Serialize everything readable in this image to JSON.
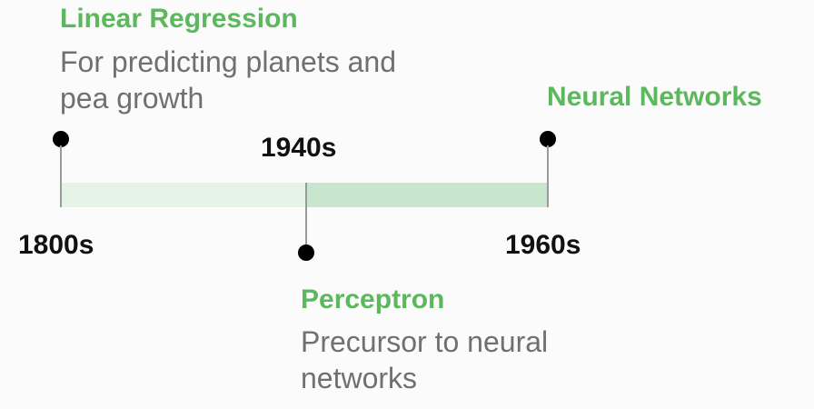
{
  "events": [
    {
      "id": "linear-regression",
      "title": "Linear Regression",
      "description": "For predicting planets and pea growth"
    },
    {
      "id": "perceptron",
      "title": "Perceptron",
      "description": "Precursor to neural networks"
    },
    {
      "id": "neural-networks",
      "title": "Neural Networks",
      "description": ""
    }
  ],
  "years": {
    "start": "1800s",
    "middle": "1940s",
    "end": "1960s"
  },
  "colors": {
    "title_green": "#5cb85c",
    "band_light": "#e6f4e8",
    "band_dark": "#c7e6cd",
    "description_gray": "#707070",
    "year_text": "#111111"
  }
}
